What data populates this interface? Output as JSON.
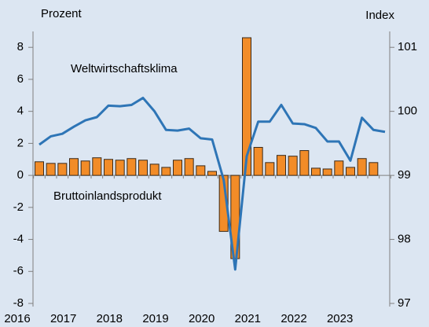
{
  "chart_data": {
    "type": "bar_line",
    "y_label": "Prozent",
    "y2_label": "Index",
    "annotations": [
      "Weltwirtschaftsklima",
      "Bruttoinlandsprodukt"
    ],
    "categories": [
      "2016",
      null,
      null,
      null,
      "2017",
      null,
      null,
      null,
      "2018",
      null,
      null,
      null,
      "2019",
      null,
      null,
      null,
      "2020",
      null,
      null,
      null,
      "2021",
      null,
      null,
      null,
      "2022",
      null,
      null,
      null,
      "2023",
      null,
      null
    ],
    "series": [
      {
        "name": "Bruttoinlandsprodukt",
        "type": "bar",
        "color": "#f28c28",
        "values": [
          0.85,
          0.75,
          0.75,
          1.05,
          0.9,
          1.1,
          1.0,
          0.95,
          1.05,
          0.95,
          0.7,
          0.5,
          0.95,
          1.05,
          0.6,
          0.25,
          -3.5,
          -5.2,
          8.6,
          1.75,
          0.8,
          1.25,
          1.2,
          1.55,
          0.45,
          0.4,
          0.9,
          0.5,
          1.05,
          0.8,
          null
        ]
      },
      {
        "name": "Weltwirtschaftsklima",
        "type": "line",
        "axis": "y2",
        "color": "#2e75b6",
        "values": [
          99.48,
          99.61,
          99.65,
          99.76,
          99.86,
          99.91,
          100.09,
          100.08,
          100.1,
          100.21,
          100.0,
          99.71,
          99.7,
          99.73,
          99.58,
          99.56,
          98.93,
          97.53,
          99.3,
          99.84,
          99.84,
          100.1,
          99.81,
          99.8,
          99.74,
          99.53,
          99.53,
          99.23,
          99.9,
          99.71,
          99.68
        ]
      }
    ],
    "ylim": [
      -8,
      8.6
    ],
    "yticks": [
      -8,
      -6,
      -4,
      -2,
      0,
      2,
      4,
      6,
      8
    ],
    "y2lim": [
      97,
      101.15
    ],
    "y2ticks": [
      97,
      98,
      99,
      100,
      101
    ]
  }
}
